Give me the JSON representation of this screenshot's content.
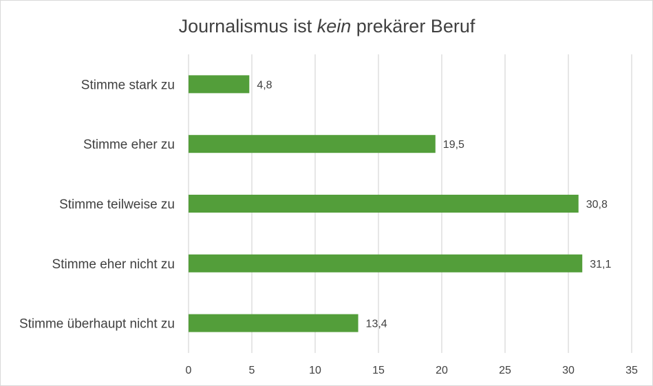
{
  "chart_data": {
    "type": "bar",
    "orientation": "horizontal",
    "title_parts": [
      "Journalismus ist ",
      "kein",
      " prekärer Beruf"
    ],
    "categories": [
      "Stimme stark zu",
      "Stimme eher zu",
      "Stimme teilweise zu",
      "Stimme eher nicht zu",
      "Stimme überhaupt nicht zu"
    ],
    "values": [
      4.8,
      19.5,
      30.8,
      31.1,
      13.4
    ],
    "data_labels": [
      "4,8",
      "19,5",
      "30,8",
      "31,1",
      "13,4"
    ],
    "xlim": [
      0,
      35
    ],
    "x_ticks": [
      0,
      5,
      10,
      15,
      20,
      25,
      30,
      35
    ],
    "x_tick_labels": [
      "0",
      "5",
      "10",
      "15",
      "20",
      "25",
      "30",
      "35"
    ],
    "grid": "vertical",
    "legend": "none",
    "bar_color": "#539e3a",
    "xlabel": "",
    "ylabel": ""
  }
}
